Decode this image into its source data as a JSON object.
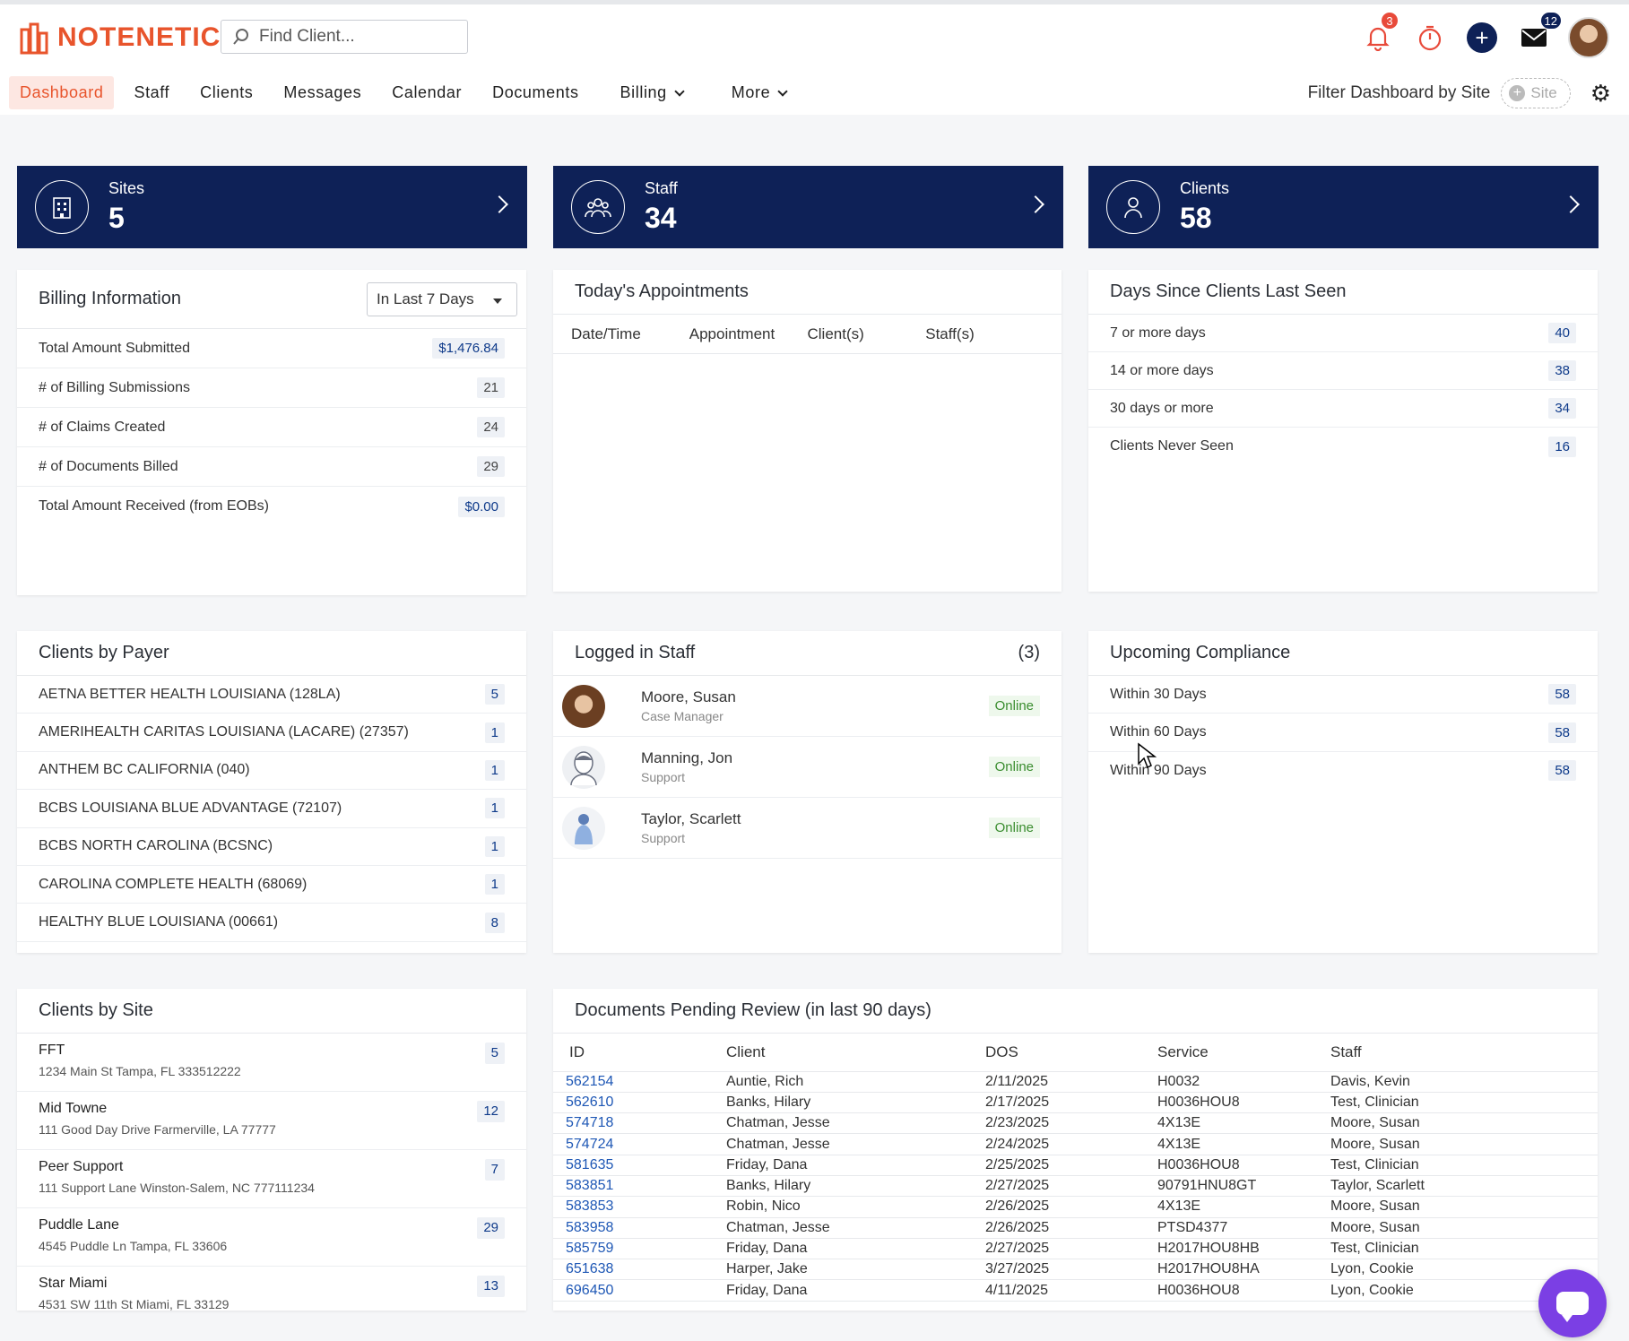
{
  "brand": {
    "name": "NOTENETIC",
    "color": "#e8542c"
  },
  "search": {
    "placeholder": "Find Client..."
  },
  "header": {
    "notifications_count": "3",
    "messages_count": "12"
  },
  "nav": {
    "items": [
      "Dashboard",
      "Staff",
      "Clients",
      "Messages",
      "Calendar",
      "Documents",
      "Billing",
      "More"
    ],
    "active": "Dashboard"
  },
  "filter": {
    "label": "Filter Dashboard by Site",
    "site_placeholder": "Site"
  },
  "stats": [
    {
      "label": "Sites",
      "value": "5",
      "icon": "building-icon"
    },
    {
      "label": "Staff",
      "value": "34",
      "icon": "group-icon"
    },
    {
      "label": "Clients",
      "value": "58",
      "icon": "person-icon"
    }
  ],
  "billing": {
    "title": "Billing Information",
    "range": "In Last 7 Days",
    "rows": [
      {
        "label": "Total Amount Submitted",
        "value": "$1,476.84"
      },
      {
        "label": "# of Billing Submissions",
        "value": "21"
      },
      {
        "label": "# of Claims Created",
        "value": "24"
      },
      {
        "label": "# of Documents Billed",
        "value": "29"
      },
      {
        "label": "Total Amount Received (from EOBs)",
        "value": "$0.00"
      }
    ]
  },
  "appointments": {
    "title": "Today's Appointments",
    "columns": [
      "Date/Time",
      "Appointment",
      "Client(s)",
      "Staff(s)"
    ]
  },
  "last_seen": {
    "title": "Days Since Clients Last Seen",
    "rows": [
      {
        "label": "7 or more days",
        "value": "40"
      },
      {
        "label": "14 or more days",
        "value": "38"
      },
      {
        "label": "30 days or more",
        "value": "34"
      },
      {
        "label": "Clients Never Seen",
        "value": "16"
      }
    ]
  },
  "payer": {
    "title": "Clients by Payer",
    "rows": [
      {
        "label": "AETNA BETTER HEALTH LOUISIANA (128LA)",
        "value": "5"
      },
      {
        "label": "AMERIHEALTH CARITAS LOUISIANA (LACARE) (27357)",
        "value": "1"
      },
      {
        "label": "ANTHEM BC CALIFORNIA (040)",
        "value": "1"
      },
      {
        "label": "BCBS LOUISIANA BLUE ADVANTAGE (72107)",
        "value": "1"
      },
      {
        "label": "BCBS NORTH CAROLINA (BCSNC)",
        "value": "1"
      },
      {
        "label": "CAROLINA COMPLETE HEALTH (68069)",
        "value": "1"
      },
      {
        "label": "HEALTHY BLUE LOUISIANA (00661)",
        "value": "8"
      }
    ]
  },
  "logged_staff": {
    "title": "Logged in Staff",
    "count": "(3)",
    "rows": [
      {
        "name": "Moore, Susan",
        "role": "Case Manager",
        "status": "Online"
      },
      {
        "name": "Manning, Jon",
        "role": "Support",
        "status": "Online"
      },
      {
        "name": "Taylor, Scarlett",
        "role": "Support",
        "status": "Online"
      }
    ]
  },
  "compliance": {
    "title": "Upcoming Compliance",
    "rows": [
      {
        "label": "Within 30 Days",
        "value": "58"
      },
      {
        "label": "Within 60 Days",
        "value": "58"
      },
      {
        "label": "Within 90 Days",
        "value": "58"
      }
    ]
  },
  "sites": {
    "title": "Clients by Site",
    "rows": [
      {
        "name": "FFT",
        "address": "1234 Main St Tampa, FL 333512222",
        "value": "5"
      },
      {
        "name": "Mid Towne",
        "address": "111 Good Day Drive Farmerville, LA 77777",
        "value": "12"
      },
      {
        "name": "Peer Support",
        "address": "111 Support Lane Winston-Salem, NC 777111234",
        "value": "7"
      },
      {
        "name": "Puddle Lane",
        "address": "4545 Puddle Ln Tampa, FL 33606",
        "value": "29"
      },
      {
        "name": "Star Miami",
        "address": "4531 SW 11th St Miami, FL 33129",
        "value": "13"
      }
    ]
  },
  "documents": {
    "title": "Documents Pending Review (in last 90 days)",
    "columns": [
      "ID",
      "Client",
      "DOS",
      "Service",
      "Staff"
    ],
    "rows": [
      [
        "562154",
        "Auntie, Rich",
        "2/11/2025",
        "H0032",
        "Davis, Kevin"
      ],
      [
        "562610",
        "Banks, Hilary",
        "2/17/2025",
        "H0036HOU8",
        "Test, Clinician"
      ],
      [
        "574718",
        "Chatman, Jesse",
        "2/23/2025",
        "4X13E",
        "Moore, Susan"
      ],
      [
        "574724",
        "Chatman, Jesse",
        "2/24/2025",
        "4X13E",
        "Moore, Susan"
      ],
      [
        "581635",
        "Friday, Dana",
        "2/25/2025",
        "H0036HOU8",
        "Test, Clinician"
      ],
      [
        "583851",
        "Banks, Hilary",
        "2/27/2025",
        "90791HNU8GT",
        "Taylor, Scarlett"
      ],
      [
        "583853",
        "Robin, Nico",
        "2/26/2025",
        "4X13E",
        "Moore, Susan"
      ],
      [
        "583958",
        "Chatman, Jesse",
        "2/26/2025",
        "PTSD4377",
        "Moore, Susan"
      ],
      [
        "585759",
        "Friday, Dana",
        "2/27/2025",
        "H2017HOU8HB",
        "Test, Clinician"
      ],
      [
        "651638",
        "Harper, Jake",
        "3/27/2025",
        "H2017HOU8HA",
        "Lyon, Cookie"
      ],
      [
        "696450",
        "Friday, Dana",
        "4/11/2025",
        "H0036HOU8",
        "Lyon, Cookie"
      ]
    ]
  }
}
